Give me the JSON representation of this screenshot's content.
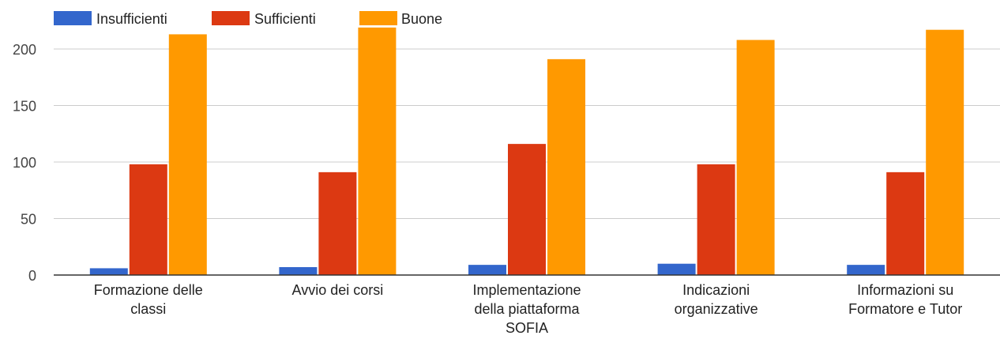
{
  "chart_data": {
    "type": "bar",
    "categories": [
      [
        "Formazione delle",
        "classi"
      ],
      [
        "Avvio dei corsi"
      ],
      [
        "Implementazione",
        "della piattaforma",
        "SOFIA"
      ],
      [
        "Indicazioni",
        "organizzative"
      ],
      [
        "Informazioni su",
        "Formatore e Tutor"
      ]
    ],
    "series": [
      {
        "name": "Insufficienti",
        "color": "#3366cc",
        "values": [
          6,
          7,
          9,
          10,
          9
        ]
      },
      {
        "name": "Sufficienti",
        "color": "#dc3912",
        "values": [
          98,
          91,
          116,
          98,
          91
        ]
      },
      {
        "name": "Buone",
        "color": "#ff9900",
        "values": [
          213,
          219,
          191,
          208,
          217
        ]
      }
    ],
    "yticks": [
      0,
      50,
      100,
      150,
      200
    ],
    "ylim": [
      0,
      225
    ],
    "grid": true,
    "legend_position": "top-left"
  }
}
